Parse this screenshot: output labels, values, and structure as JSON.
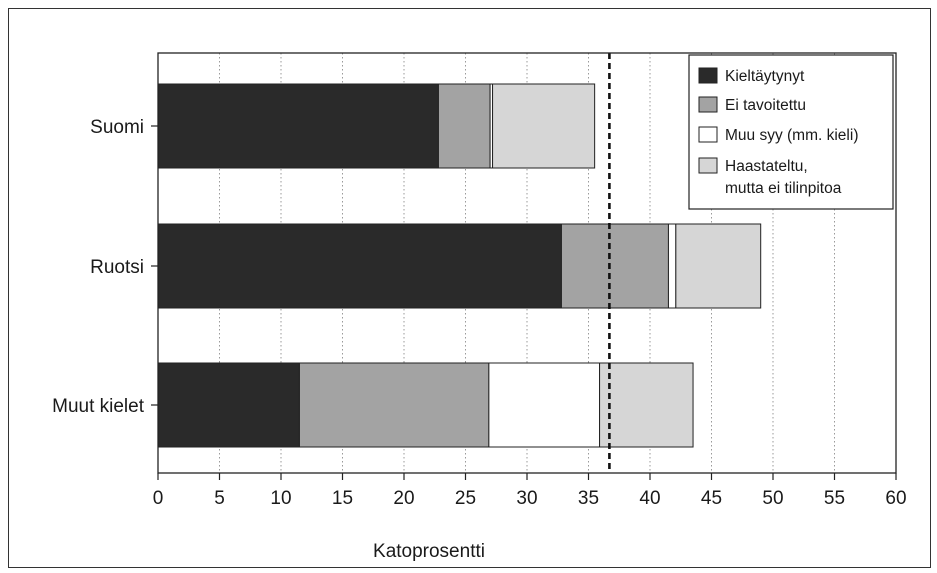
{
  "chart_data": {
    "type": "bar",
    "orientation": "horizontal",
    "stacked": true,
    "categories": [
      "Suomi",
      "Ruotsi",
      "Muut kielet"
    ],
    "series": [
      {
        "name": "Kieltäytynyt",
        "color": "#2a2a2a",
        "values": [
          22.8,
          32.8,
          11.5
        ]
      },
      {
        "name": "Ei tavoitettu",
        "color": "#a3a3a3",
        "values": [
          4.2,
          8.7,
          15.4
        ]
      },
      {
        "name": "Muu syy (mm. kieli)",
        "color": "#ffffff",
        "values": [
          0.2,
          0.6,
          9.0
        ]
      },
      {
        "name": "Haastateltu, mutta ei tilinpitoa",
        "color": "#d6d6d6",
        "values": [
          8.3,
          6.9,
          7.6
        ]
      }
    ],
    "xlabel": "Katoprosentti",
    "xlim": [
      0,
      60
    ],
    "xticks": [
      0,
      5,
      10,
      15,
      20,
      25,
      30,
      35,
      40,
      45,
      50,
      55,
      60
    ],
    "reference_line": {
      "x": 36.7,
      "style": "dashed"
    },
    "grid": "vertical",
    "legend": {
      "placement": "top-right",
      "entries": [
        {
          "lines": [
            "Kieltäytynyt"
          ]
        },
        {
          "lines": [
            "Ei tavoitettu"
          ]
        },
        {
          "lines": [
            "Muu syy (mm. kieli)"
          ]
        },
        {
          "lines": [
            "Haastateltu,",
            "mutta ei tilinpitoa"
          ]
        }
      ]
    }
  }
}
